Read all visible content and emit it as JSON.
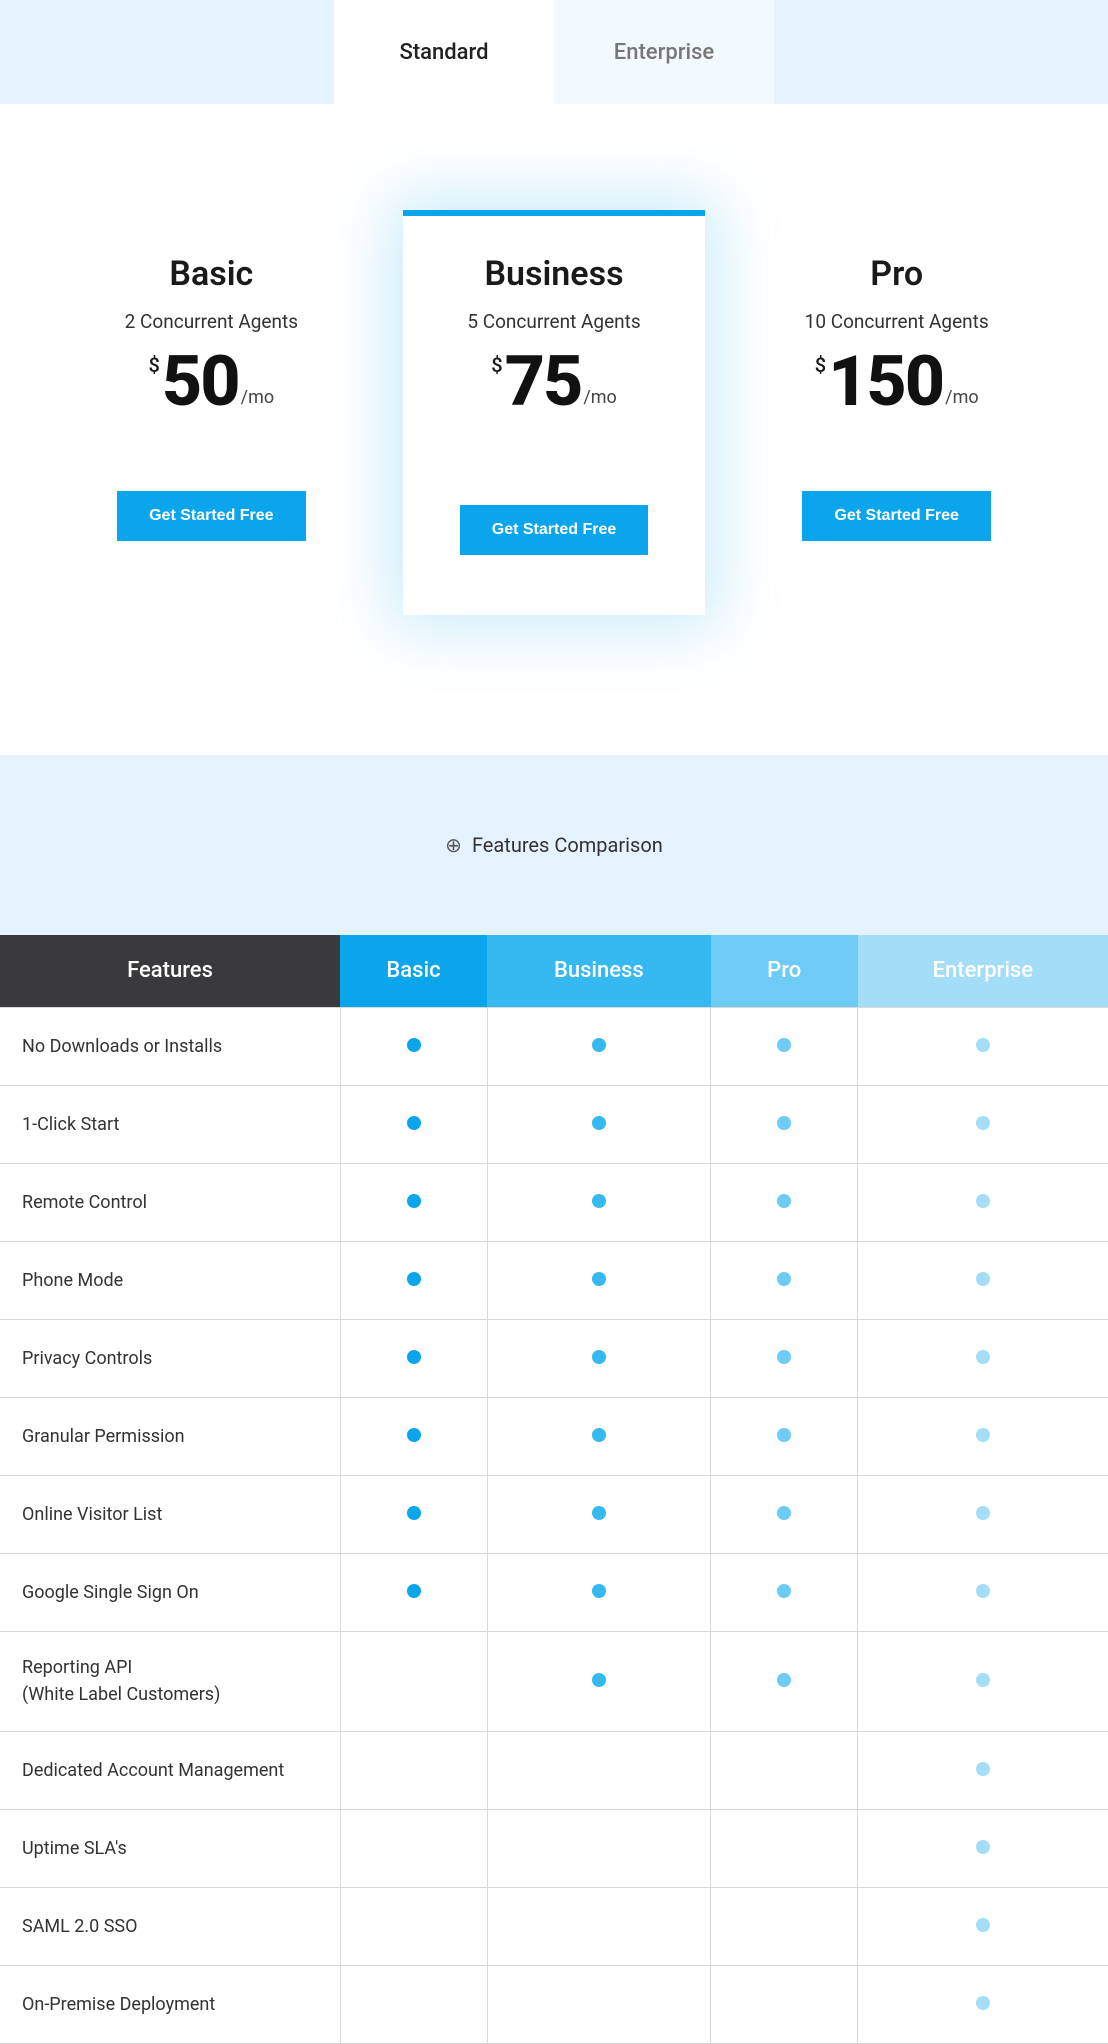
{
  "tabs": {
    "standard": "Standard",
    "enterprise": "Enterprise"
  },
  "plans": [
    {
      "name": "Basic",
      "subtitle": "2 Concurrent Agents",
      "currency": "$",
      "price": "50",
      "period": "/mo",
      "cta": "Get Started Free",
      "featured": false
    },
    {
      "name": "Business",
      "subtitle": "5 Concurrent Agents",
      "currency": "$",
      "price": "75",
      "period": "/mo",
      "cta": "Get Started Free",
      "featured": true
    },
    {
      "name": "Pro",
      "subtitle": "10 Concurrent Agents",
      "currency": "$",
      "price": "150",
      "period": "/mo",
      "cta": "Get Started Free",
      "featured": false
    }
  ],
  "comparison_title": "Features Comparison",
  "table": {
    "columns": [
      {
        "label": "Features",
        "bg": "#3a3a3c",
        "dot_color": null
      },
      {
        "label": "Basic",
        "bg": "#0ba5ec",
        "dot_color": "#0ba5ec"
      },
      {
        "label": "Business",
        "bg": "#36b8f0",
        "dot_color": "#36b8f0"
      },
      {
        "label": "Pro",
        "bg": "#6ecbf5",
        "dot_color": "#6ecbf5"
      },
      {
        "label": "Enterprise",
        "bg": "#a3ddf8",
        "dot_color": "#a3ddf8"
      }
    ],
    "rows": [
      {
        "name": "No Downloads or Installs",
        "checks": [
          true,
          true,
          true,
          true
        ]
      },
      {
        "name": "1-Click Start",
        "checks": [
          true,
          true,
          true,
          true
        ]
      },
      {
        "name": "Remote Control",
        "checks": [
          true,
          true,
          true,
          true
        ]
      },
      {
        "name": "Phone Mode",
        "checks": [
          true,
          true,
          true,
          true
        ]
      },
      {
        "name": "Privacy Controls",
        "checks": [
          true,
          true,
          true,
          true
        ]
      },
      {
        "name": "Granular Permission",
        "checks": [
          true,
          true,
          true,
          true
        ]
      },
      {
        "name": "Online Visitor List",
        "checks": [
          true,
          true,
          true,
          true
        ]
      },
      {
        "name": "Google Single Sign On",
        "checks": [
          true,
          true,
          true,
          true
        ]
      },
      {
        "name": "Reporting API\n(White Label Customers)",
        "checks": [
          false,
          true,
          true,
          true
        ],
        "tall": true
      },
      {
        "name": "Dedicated Account Management",
        "checks": [
          false,
          false,
          false,
          true
        ]
      },
      {
        "name": "Uptime SLA's",
        "checks": [
          false,
          false,
          false,
          true
        ]
      },
      {
        "name": "SAML 2.0 SSO",
        "checks": [
          false,
          false,
          false,
          true
        ]
      },
      {
        "name": "On-Premise Deployment",
        "checks": [
          false,
          false,
          false,
          true
        ]
      }
    ]
  },
  "colors": {
    "accent": "#0ba5ec",
    "light_bg": "#e5f3fe"
  }
}
